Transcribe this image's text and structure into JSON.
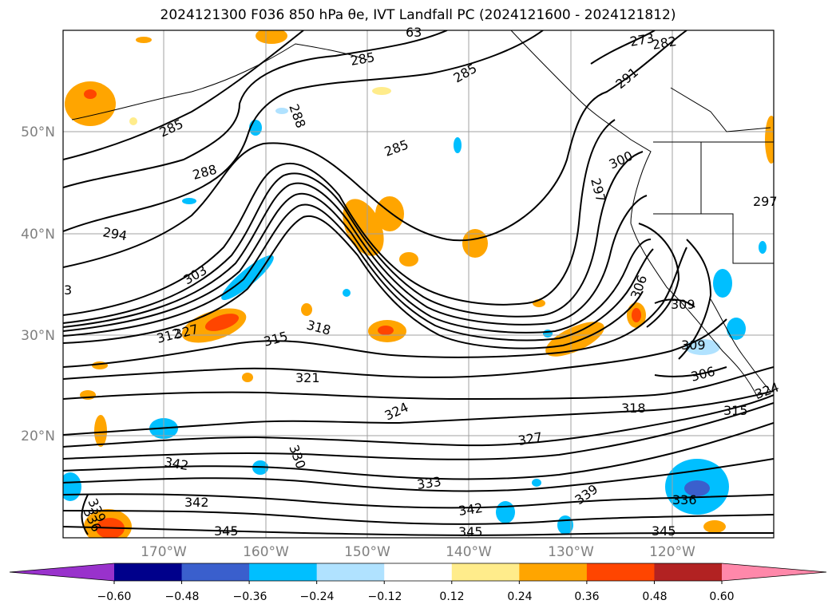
{
  "title": "2024121300 F036 850 hPa θe, IVT Landfall PC (2024121600 - 2024121812)",
  "map": {
    "lat_labels": [
      "50°N",
      "40°N",
      "30°N",
      "20°N"
    ],
    "lon_labels": [
      "170°W",
      "160°W",
      "150°W",
      "140°W",
      "130°W",
      "120°W"
    ],
    "theta_e_contour_labels": [
      "285",
      "285",
      "285",
      "285",
      "288",
      "288",
      "291",
      "294",
      "297",
      "297",
      "300",
      "303",
      "306",
      "306",
      "309",
      "309",
      "315",
      "315",
      "318",
      "318",
      "321",
      "324",
      "327",
      "330",
      "333",
      "336",
      "336",
      "339",
      "339",
      "342",
      "342",
      "342",
      "345",
      "345",
      "3",
      "63",
      "273",
      "282",
      "312",
      "327",
      "324"
    ]
  },
  "colorbar": {
    "tick_labels": [
      "−0.60",
      "−0.48",
      "−0.36",
      "−0.24",
      "−0.12",
      "0.12",
      "0.24",
      "0.36",
      "0.48",
      "0.60"
    ],
    "colors": [
      "#9932cc",
      "#00008b",
      "#3a5fcd",
      "#00bfff",
      "#b0e2ff",
      "#ffffff",
      "#ffec8b",
      "#ffa500",
      "#ff4500",
      "#b22222",
      "#ff88aa"
    ],
    "extend": "both"
  }
}
